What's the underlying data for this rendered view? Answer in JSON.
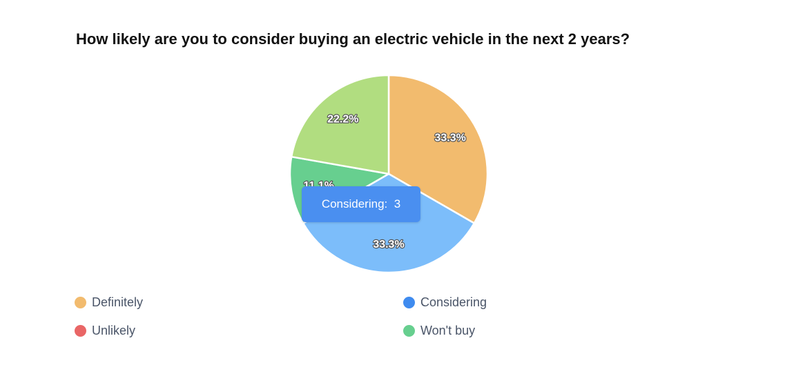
{
  "chart_data": {
    "type": "pie",
    "title": "How likely are you to consider buying an electric vehicle in the next 2 years?",
    "slices": [
      {
        "name": "Definitely",
        "value": 3,
        "percent_label": "33.3%",
        "color": "#f2bb6e"
      },
      {
        "name": "Considering",
        "value": 3,
        "percent_label": "33.3%",
        "color": "#7cbdfa"
      },
      {
        "name": "Unlikely",
        "value": 0,
        "percent_label": "",
        "color": "#e96666"
      },
      {
        "name": "Won't buy",
        "value": 1,
        "percent_label": "11.1%",
        "color": "#67cf8f"
      },
      {
        "name": "",
        "value": 2,
        "percent_label": "22.2%",
        "color": "#b1dd80"
      }
    ],
    "legend": {
      "placement": "bottom",
      "items": [
        {
          "label": "Definitely",
          "color": "#f2bb6e"
        },
        {
          "label": "Considering",
          "color": "#3f8bef"
        },
        {
          "label": "Unlikely",
          "color": "#e96666"
        },
        {
          "label": "Won't buy",
          "color": "#67cf8f"
        }
      ]
    }
  },
  "tooltip": {
    "label": "Considering:",
    "value": "3",
    "color": "#4a8ff0"
  }
}
